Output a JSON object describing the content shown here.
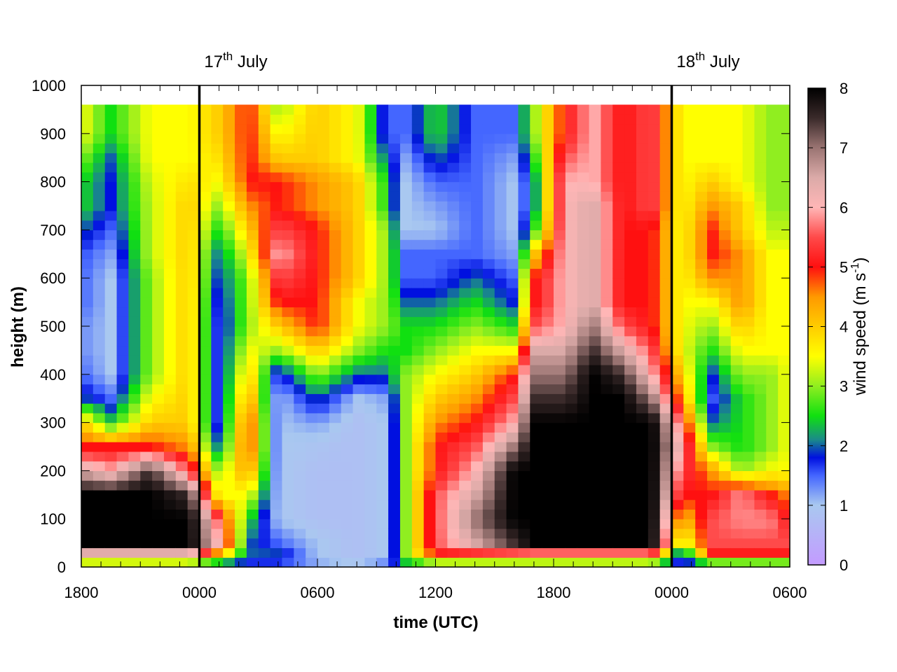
{
  "chart_data": {
    "type": "heatmap",
    "xlabel": "time (UTC)",
    "ylabel": "height (m)",
    "x_tick_labels": [
      "1800",
      "0000",
      "0600",
      "1200",
      "1800",
      "0000",
      "0600"
    ],
    "x_tick_hours": [
      0,
      6,
      12,
      18,
      24,
      30,
      36
    ],
    "xlim_hours": [
      0,
      36
    ],
    "y_ticks": [
      0,
      100,
      200,
      300,
      400,
      500,
      600,
      700,
      800,
      900,
      1000
    ],
    "ylim": [
      0,
      1000
    ],
    "data_top_height": 960,
    "date_markers": [
      {
        "main": "17",
        "sup": "th",
        "rest": " July",
        "hour": 6
      },
      {
        "main": "18",
        "sup": "th",
        "rest": " July",
        "hour": 30
      }
    ],
    "colorbar": {
      "label_main": "wind speed (m s",
      "label_sup": "-1",
      "label_end": ")",
      "range": [
        0,
        8
      ],
      "ticks": [
        0,
        1,
        2,
        3,
        4,
        5,
        6,
        7,
        8
      ],
      "stops": [
        {
          "v": 0,
          "color": "#c39bff"
        },
        {
          "v": 1,
          "color": "#a9c8f0"
        },
        {
          "v": 1.5,
          "color": "#4466ff"
        },
        {
          "v": 1.8,
          "color": "#0010e0"
        },
        {
          "v": 2.1,
          "color": "#1a8a8a"
        },
        {
          "v": 2.5,
          "color": "#10e010"
        },
        {
          "v": 3,
          "color": "#90ee20"
        },
        {
          "v": 3.5,
          "color": "#ffff00"
        },
        {
          "v": 4,
          "color": "#ffcc00"
        },
        {
          "v": 4.5,
          "color": "#ff9900"
        },
        {
          "v": 5,
          "color": "#ff1010"
        },
        {
          "v": 5.5,
          "color": "#ff4a4a"
        },
        {
          "v": 6,
          "color": "#ffb6b6"
        },
        {
          "v": 6.5,
          "color": "#dbaaa8"
        },
        {
          "v": 7,
          "color": "#9a7472"
        },
        {
          "v": 7.5,
          "color": "#3a2a2a"
        },
        {
          "v": 8,
          "color": "#000000"
        }
      ]
    },
    "heights": [
      0,
      25,
      50,
      100,
      150,
      200,
      250,
      300,
      350,
      400,
      450,
      500,
      550,
      600,
      650,
      700,
      750,
      800,
      850,
      900,
      960
    ],
    "field_columns": [
      {
        "t": 0,
        "p": [
          1.5,
          6.0,
          8.0,
          8.0,
          8.0,
          6.5,
          5.0,
          4.0,
          2.0,
          1.5,
          1.3,
          1.3,
          1.5,
          1.5,
          1.6,
          2.0,
          2.5,
          2.5,
          3.0,
          3.5,
          3.5
        ]
      },
      {
        "t": 1.5,
        "p": [
          1.5,
          6.0,
          8.0,
          8.0,
          8.0,
          6.0,
          5.0,
          2.5,
          1.5,
          1.0,
          1.0,
          1.0,
          1.0,
          1.0,
          1.2,
          1.5,
          1.8,
          1.8,
          2.0,
          2.5,
          2.5
        ]
      },
      {
        "t": 3.5,
        "p": [
          1.5,
          6.0,
          8.0,
          8.0,
          8.0,
          7.5,
          5.0,
          4.0,
          3.5,
          3.0,
          3.0,
          3.0,
          3.0,
          3.0,
          3.2,
          3.2,
          3.2,
          3.3,
          3.5,
          3.5,
          3.5
        ]
      },
      {
        "t": 5.5,
        "p": [
          1.5,
          6.0,
          8.0,
          8.0,
          7.5,
          5.5,
          4.5,
          4.0,
          4.0,
          4.0,
          4.0,
          4.0,
          4.0,
          4.0,
          4.0,
          4.0,
          4.0,
          3.8,
          3.5,
          3.5,
          3.5
        ]
      },
      {
        "t": 7.0,
        "p": [
          1.5,
          4.0,
          6.0,
          5.5,
          3.5,
          3.0,
          2.0,
          1.5,
          1.5,
          1.5,
          1.5,
          1.5,
          1.6,
          1.8,
          2.0,
          2.5,
          3.0,
          3.5,
          3.8,
          4.0,
          4.0
        ]
      },
      {
        "t": 8.5,
        "p": [
          1.5,
          2.0,
          2.0,
          2.5,
          3.5,
          4.5,
          5.0,
          5.0,
          4.5,
          4.0,
          3.5,
          3.0,
          3.0,
          3.0,
          3.5,
          4.0,
          4.5,
          5.0,
          5.0,
          5.0,
          5.0
        ]
      },
      {
        "t": 10.0,
        "p": [
          1.5,
          2.0,
          1.5,
          1.0,
          1.0,
          1.0,
          1.0,
          1.0,
          1.0,
          1.5,
          3.0,
          4.0,
          5.0,
          5.5,
          6.0,
          5.5,
          5.0,
          5.0,
          4.0,
          3.5,
          3.0
        ]
      },
      {
        "t": 12.0,
        "p": [
          1.2,
          1.0,
          1.0,
          0.8,
          0.8,
          0.8,
          0.9,
          1.2,
          2.0,
          3.0,
          4.0,
          5.0,
          5.0,
          5.0,
          5.0,
          5.0,
          4.5,
          4.5,
          4.0,
          4.0,
          4.0
        ]
      },
      {
        "t": 14.0,
        "p": [
          1.0,
          0.8,
          0.8,
          0.8,
          0.8,
          0.8,
          0.8,
          0.8,
          1.0,
          2.0,
          3.0,
          3.5,
          3.5,
          4.0,
          4.0,
          4.0,
          4.0,
          4.0,
          3.5,
          3.5,
          3.5
        ]
      },
      {
        "t": 15.5,
        "p": [
          1.5,
          1.0,
          1.0,
          1.0,
          1.0,
          1.0,
          1.0,
          1.0,
          1.2,
          2.0,
          2.5,
          3.0,
          3.0,
          3.0,
          3.0,
          3.0,
          2.5,
          2.5,
          2.0,
          1.5,
          1.5
        ]
      },
      {
        "t": 16.5,
        "p": [
          2.0,
          3.0,
          3.0,
          3.0,
          3.0,
          3.0,
          3.0,
          3.0,
          3.0,
          3.0,
          2.5,
          2.5,
          2.0,
          1.5,
          1.5,
          1.0,
          1.0,
          1.0,
          1.2,
          1.5,
          1.5
        ]
      },
      {
        "t": 18.0,
        "p": [
          2.0,
          5.0,
          5.5,
          5.5,
          5.5,
          5.0,
          5.0,
          4.5,
          4.0,
          3.5,
          3.0,
          2.5,
          2.0,
          1.5,
          1.5,
          1.0,
          1.2,
          1.5,
          2.0,
          2.5,
          2.5
        ]
      },
      {
        "t": 20.0,
        "p": [
          2.0,
          5.0,
          6.5,
          7.0,
          6.5,
          6.0,
          5.5,
          5.0,
          4.5,
          4.0,
          3.5,
          3.0,
          2.5,
          2.0,
          1.5,
          1.5,
          1.5,
          1.5,
          1.5,
          1.5,
          1.5
        ]
      },
      {
        "t": 22.0,
        "p": [
          2.0,
          5.0,
          7.5,
          8.0,
          8.0,
          8.0,
          7.0,
          6.0,
          5.5,
          5.0,
          3.5,
          2.5,
          1.8,
          1.5,
          1.2,
          1.0,
          1.0,
          1.0,
          1.2,
          1.5,
          1.5
        ]
      },
      {
        "t": 23.0,
        "p": [
          2.0,
          5.0,
          8.0,
          8.0,
          8.0,
          8.0,
          8.0,
          8.0,
          7.5,
          7.0,
          6.5,
          5.5,
          5.0,
          5.0,
          4.0,
          2.5,
          2.0,
          2.0,
          2.5,
          3.0,
          3.0
        ]
      },
      {
        "t": 24.5,
        "p": [
          2.0,
          5.0,
          8.0,
          8.0,
          8.0,
          8.0,
          8.0,
          8.0,
          7.5,
          7.0,
          6.5,
          6.0,
          6.0,
          6.0,
          6.0,
          6.0,
          6.0,
          6.0,
          5.5,
          5.0,
          5.0
        ]
      },
      {
        "t": 26.0,
        "p": [
          2.0,
          5.0,
          8.0,
          8.0,
          8.0,
          8.0,
          8.0,
          8.0,
          8.0,
          8.0,
          7.5,
          7.0,
          6.5,
          6.5,
          6.5,
          6.5,
          6.5,
          6.0,
          6.0,
          6.0,
          6.0
        ]
      },
      {
        "t": 27.5,
        "p": [
          2.0,
          5.0,
          8.0,
          8.0,
          8.0,
          8.0,
          8.0,
          8.0,
          8.0,
          7.5,
          6.5,
          5.5,
          5.0,
          5.0,
          5.0,
          5.0,
          5.0,
          5.0,
          5.0,
          5.0,
          5.0
        ]
      },
      {
        "t": 29.0,
        "p": [
          2.0,
          5.0,
          8.0,
          8.0,
          8.0,
          8.0,
          8.0,
          8.0,
          7.0,
          6.0,
          5.5,
          5.0,
          5.0,
          5.0,
          5.0,
          5.0,
          5.5,
          5.5,
          5.5,
          5.5,
          5.5
        ]
      },
      {
        "t": 30.5,
        "p": [
          1.5,
          1.5,
          3.0,
          4.0,
          5.0,
          5.5,
          6.0,
          5.5,
          4.5,
          4.0,
          3.5,
          3.5,
          3.5,
          3.5,
          3.5,
          3.5,
          3.5,
          3.5,
          3.5,
          3.5,
          3.5
        ]
      },
      {
        "t": 32.0,
        "p": [
          1.5,
          5.0,
          5.5,
          5.5,
          5.0,
          4.5,
          3.0,
          2.0,
          1.5,
          1.8,
          2.5,
          3.0,
          3.5,
          4.5,
          5.0,
          5.0,
          4.5,
          4.0,
          3.5,
          3.5,
          3.5
        ]
      },
      {
        "t": 33.5,
        "p": [
          1.5,
          5.0,
          5.5,
          5.8,
          5.8,
          3.0,
          2.5,
          2.5,
          2.5,
          3.0,
          3.5,
          4.0,
          4.5,
          4.5,
          4.5,
          4.0,
          4.0,
          3.5,
          3.5,
          3.5,
          3.5
        ]
      },
      {
        "t": 35.0,
        "p": [
          1.5,
          5.0,
          5.5,
          5.8,
          5.0,
          3.5,
          3.0,
          3.0,
          3.0,
          3.0,
          3.5,
          3.5,
          3.5,
          3.5,
          3.5,
          3.2,
          3.0,
          3.0,
          3.0,
          3.0,
          3.0
        ]
      },
      {
        "t": 36.0,
        "p": [
          1.5,
          5.0,
          5.5,
          5.0,
          4.5,
          3.5,
          3.5,
          3.5,
          3.5,
          3.5,
          3.5,
          3.5,
          3.5,
          3.5,
          3.5,
          3.2,
          3.0,
          3.0,
          3.0,
          3.0,
          3.0
        ]
      }
    ]
  }
}
